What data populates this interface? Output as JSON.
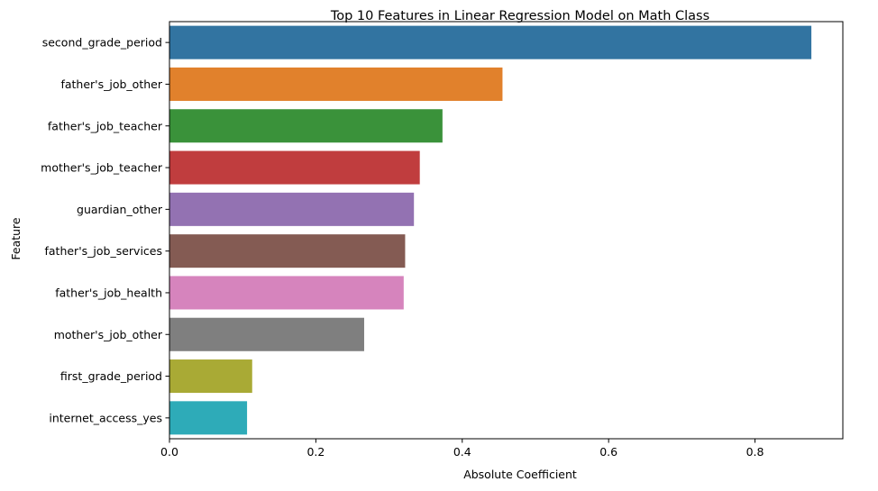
{
  "chart_data": {
    "type": "bar",
    "orientation": "horizontal",
    "title": "Top 10 Features in Linear Regression Model on Math Class",
    "xlabel": "Absolute Coefficient",
    "ylabel": "Feature",
    "xlim": [
      0,
      0.92
    ],
    "x_ticks": [
      0.0,
      0.2,
      0.4,
      0.6,
      0.8
    ],
    "x_tick_labels": [
      "0.0",
      "0.2",
      "0.4",
      "0.6",
      "0.8"
    ],
    "grid": false,
    "categories": [
      "second_grade_period",
      "father's_job_other",
      "father's_job_teacher",
      "mother's_job_teacher",
      "guardian_other",
      "father's_job_services",
      "father's_job_health",
      "mother's_job_other",
      "first_grade_period",
      "internet_access_yes"
    ],
    "values": [
      0.877,
      0.455,
      0.373,
      0.342,
      0.334,
      0.322,
      0.32,
      0.266,
      0.113,
      0.106
    ],
    "colors": [
      "#3274a1",
      "#e1812c",
      "#3a923a",
      "#c03d3e",
      "#9372b2",
      "#845b53",
      "#d684bd",
      "#7f7f7f",
      "#a9aa35",
      "#2eabb8"
    ]
  }
}
